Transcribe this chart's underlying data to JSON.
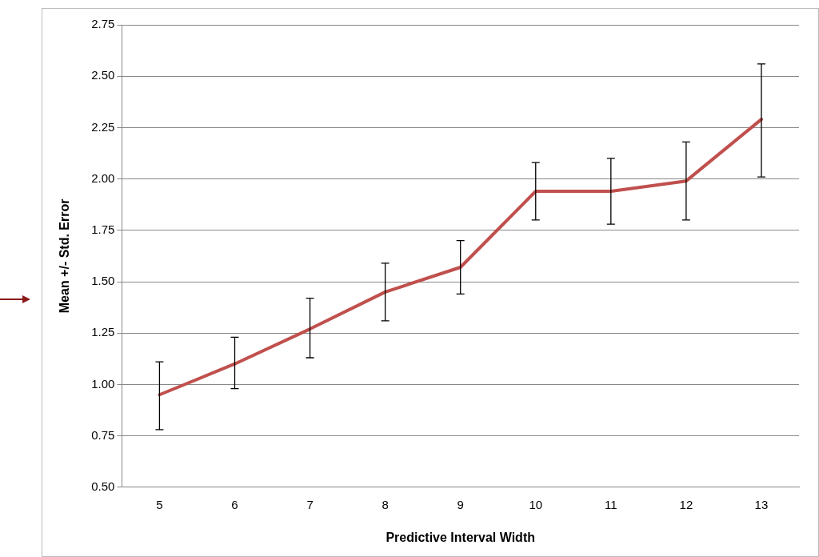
{
  "chart_data": {
    "type": "line",
    "xlabel": "Predictive Interval Width",
    "ylabel": "Mean +/- Std. Error",
    "categories": [
      "5",
      "6",
      "7",
      "8",
      "9",
      "10",
      "11",
      "12",
      "13"
    ],
    "series": [
      {
        "color": "#c0504d",
        "values": [
          0.95,
          1.1,
          1.27,
          1.45,
          1.57,
          1.94,
          1.94,
          1.99,
          2.29
        ],
        "errors": [
          [
            0.78,
            1.11
          ],
          [
            0.98,
            1.23
          ],
          [
            1.13,
            1.42
          ],
          [
            1.31,
            1.59
          ],
          [
            1.44,
            1.7
          ],
          [
            1.8,
            2.08
          ],
          [
            1.78,
            2.1
          ],
          [
            1.8,
            2.18
          ],
          [
            2.01,
            2.56
          ]
        ]
      }
    ],
    "ylim": [
      0.5,
      2.75
    ],
    "yticks": [
      {
        "value": 0.5,
        "label": "0.50"
      },
      {
        "value": 0.75,
        "label": "0.75"
      },
      {
        "value": 1,
        "label": "1.00"
      },
      {
        "value": 1.25,
        "label": "1.25"
      },
      {
        "value": 1.5,
        "label": "1.50"
      },
      {
        "value": 1.75,
        "label": "1.75"
      },
      {
        "value": 2,
        "label": "2.00"
      },
      {
        "value": 2.25,
        "label": "2.25"
      },
      {
        "value": 2.5,
        "label": "2.50"
      },
      {
        "value": 2.75,
        "label": "2.75"
      }
    ],
    "grid": "y",
    "legend": false,
    "marker": "none",
    "line_style": "solid"
  }
}
